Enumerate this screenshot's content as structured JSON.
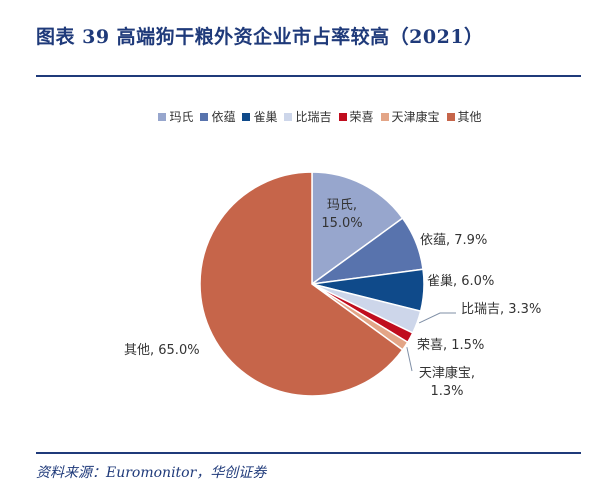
{
  "header": {
    "title": "图表 39 高端狗干粮外资企业市占率较高（2021）"
  },
  "footer": {
    "source": "资料来源：Euromonitor，华创证券"
  },
  "chart_data": {
    "type": "pie",
    "title": "图表 39 高端狗干粮外资企业市占率较高（2021）",
    "legend_position": "top",
    "unit": "%",
    "slices": [
      {
        "name": "玛氏",
        "value": 15.0,
        "label": "玛氏, 15.0%",
        "color": "#97a6cd"
      },
      {
        "name": "依蕴",
        "value": 7.9,
        "label": "依蕴, 7.9%",
        "color": "#5873ad"
      },
      {
        "name": "雀巢",
        "value": 6.0,
        "label": "雀巢, 6.0%",
        "color": "#0f4a8a"
      },
      {
        "name": "比瑞吉",
        "value": 3.3,
        "label": "比瑞吉, 3.3%",
        "color": "#cdd6ea"
      },
      {
        "name": "荣喜",
        "value": 1.5,
        "label": "荣喜, 1.5%",
        "color": "#c00d1e"
      },
      {
        "name": "天津康宝",
        "value": 1.3,
        "label": "天津康宝, 1.3%",
        "color": "#e3a587"
      },
      {
        "name": "其他",
        "value": 65.0,
        "label": "其他, 65.0%",
        "color": "#c6654a"
      }
    ]
  }
}
